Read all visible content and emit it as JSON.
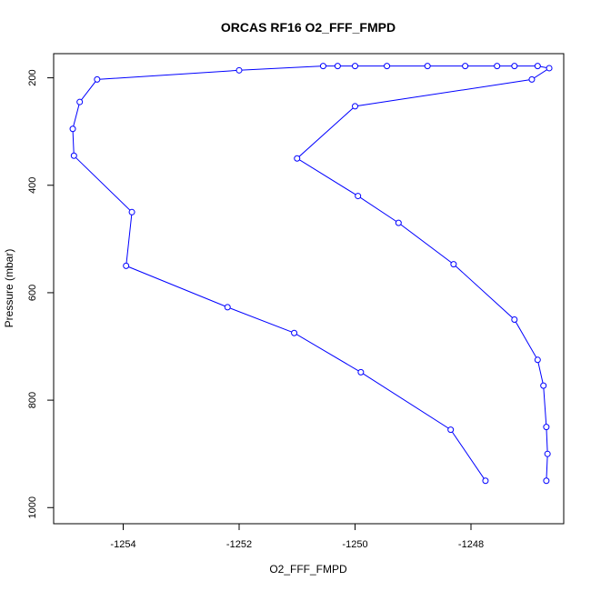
{
  "chart_data": {
    "type": "line",
    "title": "ORCAS RF16 O2_FFF_FMPD",
    "xlabel": "O2_FFF_FMPD",
    "ylabel": "Pressure (mbar)",
    "xlim": [
      -1255.2,
      -1246.4
    ],
    "ylim": [
      1030,
      155
    ],
    "y_reversed": true,
    "x_ticks": [
      -1254,
      -1252,
      -1250,
      -1248
    ],
    "x_tick_labels": [
      "-1254",
      "-1252",
      "-1250",
      "-1248"
    ],
    "y_ticks": [
      200,
      400,
      600,
      800,
      1000
    ],
    "y_tick_labels": [
      "200",
      "400",
      "600",
      "800",
      "1000"
    ],
    "grid": false,
    "legend": "none",
    "series": [
      {
        "color": "#0000ff",
        "marker": "open-circle",
        "points": [
          {
            "x": -1247.75,
            "y": 950
          },
          {
            "x": -1248.35,
            "y": 855
          },
          {
            "x": -1249.9,
            "y": 748
          },
          {
            "x": -1251.05,
            "y": 675
          },
          {
            "x": -1252.2,
            "y": 627
          },
          {
            "x": -1253.95,
            "y": 550
          },
          {
            "x": -1253.85,
            "y": 450
          },
          {
            "x": -1254.85,
            "y": 345
          },
          {
            "x": -1254.87,
            "y": 295
          },
          {
            "x": -1254.75,
            "y": 245
          },
          {
            "x": -1254.45,
            "y": 203
          },
          {
            "x": -1252.0,
            "y": 186
          },
          {
            "x": -1250.55,
            "y": 178
          },
          {
            "x": -1250.3,
            "y": 178
          },
          {
            "x": -1250.0,
            "y": 178
          },
          {
            "x": -1249.45,
            "y": 178
          },
          {
            "x": -1248.75,
            "y": 178
          },
          {
            "x": -1248.1,
            "y": 178
          },
          {
            "x": -1247.55,
            "y": 178
          },
          {
            "x": -1247.25,
            "y": 178
          },
          {
            "x": -1246.85,
            "y": 178
          },
          {
            "x": -1246.65,
            "y": 182
          },
          {
            "x": -1246.95,
            "y": 203
          },
          {
            "x": -1250.0,
            "y": 253
          },
          {
            "x": -1251.0,
            "y": 350
          },
          {
            "x": -1249.95,
            "y": 420
          },
          {
            "x": -1249.25,
            "y": 470
          },
          {
            "x": -1248.3,
            "y": 547
          },
          {
            "x": -1247.25,
            "y": 650
          },
          {
            "x": -1246.85,
            "y": 725
          },
          {
            "x": -1246.75,
            "y": 773
          },
          {
            "x": -1246.7,
            "y": 850
          },
          {
            "x": -1246.68,
            "y": 900
          },
          {
            "x": -1246.7,
            "y": 950
          }
        ]
      }
    ]
  }
}
